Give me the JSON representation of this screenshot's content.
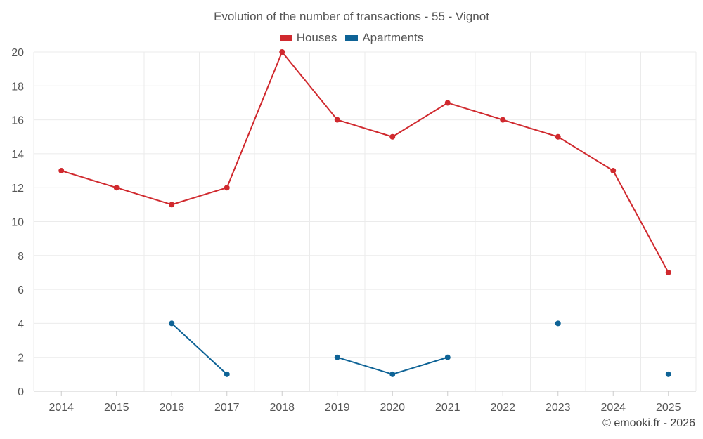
{
  "chart_data": {
    "type": "line",
    "title": "Evolution of the number of transactions - 55 - Vignot",
    "xlabel": "",
    "ylabel": "",
    "categories": [
      "2014",
      "2015",
      "2016",
      "2017",
      "2018",
      "2019",
      "2020",
      "2021",
      "2022",
      "2023",
      "2024",
      "2025"
    ],
    "ylim": [
      0,
      20
    ],
    "yticks": [
      0,
      2,
      4,
      6,
      8,
      10,
      12,
      14,
      16,
      18,
      20
    ],
    "grid": true,
    "legend_position": "top-center",
    "series": [
      {
        "name": "Houses",
        "color": "#d0292e",
        "values": [
          13,
          12,
          11,
          12,
          20,
          16,
          15,
          17,
          16,
          15,
          13,
          7
        ]
      },
      {
        "name": "Apartments",
        "color": "#0e6396",
        "values": [
          null,
          null,
          4,
          1,
          null,
          2,
          1,
          2,
          null,
          4,
          null,
          1
        ]
      }
    ]
  },
  "credit": "© emooki.fr - 2026"
}
